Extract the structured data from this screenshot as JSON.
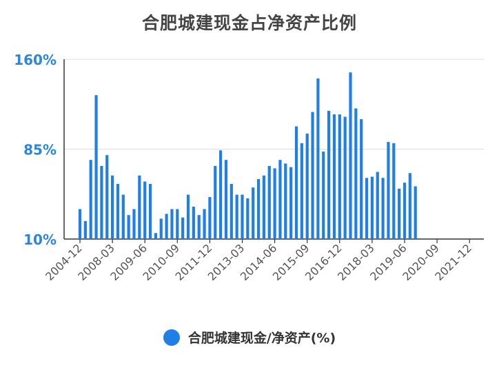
{
  "chart_data": {
    "type": "bar",
    "title": "合肥城建现金占净资产比例",
    "xlabel": "",
    "ylabel": "",
    "ylim": [
      10,
      160
    ],
    "yticks": [
      "160%",
      "85%",
      "10%"
    ],
    "ytick_values": [
      160,
      85,
      10
    ],
    "grid": true,
    "legend_position": "bottom",
    "bar_color": "#1f7fe6",
    "x_tick_labels": [
      {
        "label": "2004-12",
        "index": 0
      },
      {
        "label": "2008-03",
        "index": 6
      },
      {
        "label": "2009-06",
        "index": 12
      },
      {
        "label": "2010-09",
        "index": 18
      },
      {
        "label": "2011-12",
        "index": 24
      },
      {
        "label": "2013-03",
        "index": 30
      },
      {
        "label": "2014-06",
        "index": 36
      },
      {
        "label": "2015-09",
        "index": 42
      },
      {
        "label": "2016-12",
        "index": 48
      },
      {
        "label": "2018-03",
        "index": 54
      },
      {
        "label": "2019-06",
        "index": 60
      },
      {
        "label": "2020-09",
        "index": 66
      },
      {
        "label": "2021-12",
        "index": 72
      }
    ],
    "series": [
      {
        "name": "合肥城建现金/净资产(%)",
        "values": [
          35,
          25,
          76,
          130,
          71,
          80,
          63,
          56,
          47,
          30,
          35,
          63,
          58,
          56,
          15,
          27,
          31,
          35,
          35,
          28,
          47,
          37,
          30,
          35,
          45,
          71,
          84,
          76,
          56,
          47,
          47,
          44,
          53,
          60,
          63,
          71,
          69,
          76,
          73,
          70,
          104,
          90,
          98,
          116,
          144,
          83,
          117,
          114,
          114,
          112,
          149,
          119,
          110,
          61,
          62,
          66,
          61,
          91,
          90,
          52,
          57,
          65,
          54
        ]
      }
    ]
  }
}
